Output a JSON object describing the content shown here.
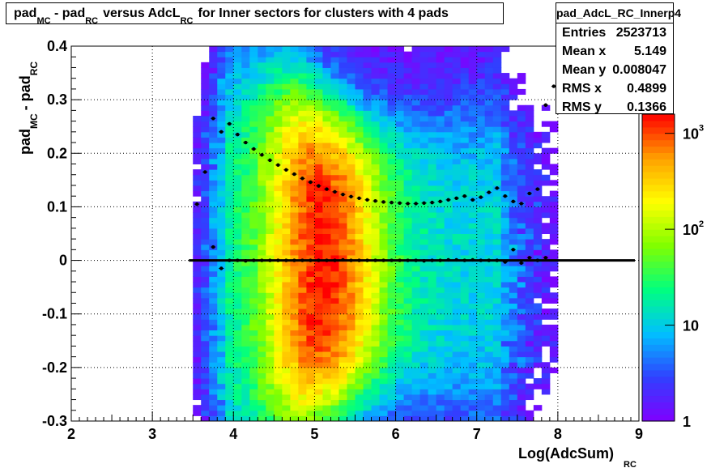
{
  "title": {
    "pad": "pad",
    "mc": "MC",
    "minus": " - ",
    "rc": "RC",
    "versus": "versus AdcL",
    "rest": "for Inner sectors for clusters with 4 pads"
  },
  "stats": {
    "name": "pad_AdcL_RC_Innerp4",
    "rows": [
      {
        "label": "Entries",
        "value": "2523713"
      },
      {
        "label": "Mean x",
        "value": "5.149"
      },
      {
        "label": "Mean y",
        "value": "0.008047"
      },
      {
        "label": "RMS x",
        "value": "0.4899"
      },
      {
        "label": "RMS y",
        "value": "0.1366"
      }
    ]
  },
  "chart_data": {
    "type": "heatmap",
    "xlabel": "Log(AdcSum)",
    "xlabel_sub": "RC",
    "ylabel": "pad",
    "ylabel_sub_mc": "MC",
    "ylabel_sub_rc": "RC",
    "xlim": [
      2,
      9
    ],
    "ylim": [
      -0.3,
      0.4
    ],
    "x_ticks": [
      "2",
      "3",
      "4",
      "5",
      "6",
      "7",
      "8",
      "9"
    ],
    "y_ticks": [
      "-0.3",
      "-0.2",
      "-0.1",
      "0",
      "0.1",
      "0.2",
      "0.3",
      "0.4"
    ],
    "color_scale": {
      "type": "log",
      "ticks": [
        "1",
        "10",
        "10^2",
        "10^3"
      ],
      "max_exponent": 3.2
    },
    "grid": true,
    "colors": {
      "palette": [
        "#8000ff",
        "#3040ff",
        "#00c0ff",
        "#00ff80",
        "#80ff00",
        "#ffff00",
        "#ffa000",
        "#ff0000"
      ]
    },
    "rms_profile": {
      "x": [
        3.55,
        3.65,
        3.75,
        3.85,
        3.95,
        4.05,
        4.15,
        4.25,
        4.35,
        4.45,
        4.55,
        4.65,
        4.75,
        4.85,
        4.95,
        5.05,
        5.15,
        5.25,
        5.35,
        5.45,
        5.55,
        5.65,
        5.75,
        5.85,
        5.95,
        6.05,
        6.15,
        6.25,
        6.35,
        6.45,
        6.55,
        6.65,
        6.75,
        6.85,
        6.95,
        7.05,
        7.15,
        7.25,
        7.35,
        7.45,
        7.55,
        7.65,
        7.75,
        7.85,
        7.95
      ],
      "y": [
        0.105,
        0.165,
        0.265,
        0.24,
        0.255,
        0.235,
        0.22,
        0.208,
        0.197,
        0.187,
        0.178,
        0.169,
        0.161,
        0.153,
        0.146,
        0.139,
        0.133,
        0.128,
        0.123,
        0.119,
        0.116,
        0.113,
        0.111,
        0.109,
        0.108,
        0.107,
        0.106,
        0.106,
        0.107,
        0.108,
        0.11,
        0.113,
        0.116,
        0.12,
        0.113,
        0.118,
        0.127,
        0.135,
        0.12,
        0.11,
        0.106,
        0.125,
        0.133,
        0.29,
        0.325
      ]
    },
    "mean_profile": {
      "x": [
        3.75,
        3.85,
        3.95,
        4.05,
        4.15,
        4.25,
        4.35,
        4.45,
        4.55,
        4.65,
        4.75,
        4.85,
        4.95,
        5.05,
        5.15,
        5.25,
        5.35,
        5.45,
        5.55,
        5.65,
        5.75,
        5.85,
        5.95,
        6.05,
        6.15,
        6.25,
        6.35,
        6.45,
        6.55,
        6.65,
        6.75,
        6.85,
        6.95,
        7.05,
        7.15,
        7.25,
        7.35,
        7.45,
        7.55,
        7.65,
        7.75,
        7.85
      ],
      "y": [
        0.025,
        -0.015,
        0.0,
        0.0,
        -0.001,
        0.0,
        0.0,
        0.0,
        0.0,
        0.0,
        0.0,
        0.0,
        0.0,
        0.0,
        0.0,
        0.0,
        0.001,
        0.0,
        0.0,
        0.0,
        0.0,
        0.0,
        0.0,
        0.0,
        0.0,
        0.0,
        -0.001,
        0.0,
        0.0,
        0.001,
        0.001,
        0.0,
        0.001,
        0.0,
        0.0,
        0.0,
        -0.003,
        0.02,
        -0.005,
        0.005,
        0.0,
        0.005
      ]
    },
    "reference_line": {
      "y": 0
    }
  }
}
